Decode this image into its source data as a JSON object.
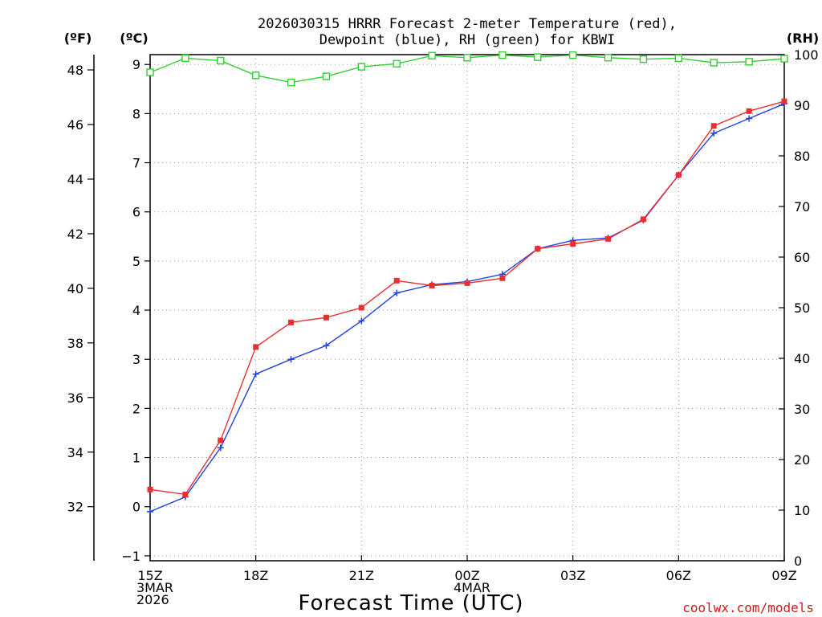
{
  "chart_data": {
    "type": "line",
    "title": [
      "2026030315 HRRR Forecast 2-meter Temperature (red),",
      "Dewpoint (blue), RH (green) for KBWI"
    ],
    "xlabel": "Forecast Time (UTC)",
    "x_hours": [
      0,
      1,
      2,
      3,
      4,
      5,
      6,
      7,
      8,
      9,
      10,
      11,
      12,
      13,
      14,
      15,
      16,
      17,
      18
    ],
    "x_ticks": [
      {
        "hour": 0,
        "lines": [
          "15Z",
          "3MAR",
          "2026"
        ]
      },
      {
        "hour": 3,
        "lines": [
          "18Z"
        ]
      },
      {
        "hour": 6,
        "lines": [
          "21Z"
        ]
      },
      {
        "hour": 9,
        "lines": [
          "00Z",
          "4MAR"
        ]
      },
      {
        "hour": 12,
        "lines": [
          "03Z"
        ]
      },
      {
        "hour": 15,
        "lines": [
          "06Z"
        ]
      },
      {
        "hour": 18,
        "lines": [
          "09Z"
        ]
      }
    ],
    "left_axis_f": {
      "label": "(ºF)",
      "ticks": [
        32,
        34,
        36,
        38,
        40,
        42,
        44,
        46,
        48
      ]
    },
    "celsius_axis": {
      "label": "(ºC)",
      "ylim": [
        -1.1,
        9.2
      ],
      "ticks": [
        -1,
        0,
        1,
        2,
        3,
        4,
        5,
        6,
        7,
        8,
        9
      ]
    },
    "rh_axis": {
      "label": "(RH)",
      "ylim": [
        0,
        100
      ],
      "ticks": [
        0,
        10,
        20,
        30,
        40,
        50,
        60,
        70,
        80,
        90,
        100
      ]
    },
    "series": [
      {
        "name": "Temperature",
        "unit": "C",
        "color": "#e83030",
        "marker": "filled-square",
        "values": [
          0.35,
          0.25,
          1.35,
          3.25,
          3.75,
          3.85,
          4.05,
          4.6,
          4.5,
          4.55,
          4.65,
          5.25,
          5.35,
          5.45,
          5.85,
          6.75,
          7.75,
          8.05,
          8.25
        ]
      },
      {
        "name": "Dewpoint",
        "unit": "C",
        "color": "#2040e0",
        "marker": "plus",
        "values": [
          -0.1,
          0.2,
          1.2,
          2.7,
          3.0,
          3.28,
          3.78,
          4.35,
          4.52,
          4.58,
          4.73,
          5.25,
          5.42,
          5.47,
          5.83,
          6.75,
          7.6,
          7.9,
          8.2
        ]
      },
      {
        "name": "RH",
        "unit": "%",
        "color": "#30d030",
        "marker": "open-square",
        "values": [
          96.5,
          99.3,
          98.8,
          95.9,
          94.5,
          95.7,
          97.6,
          98.2,
          99.8,
          99.4,
          99.9,
          99.5,
          99.9,
          99.4,
          99.1,
          99.3,
          98.4,
          98.6,
          99.2
        ]
      }
    ]
  },
  "credit": "coolwx.com/models"
}
